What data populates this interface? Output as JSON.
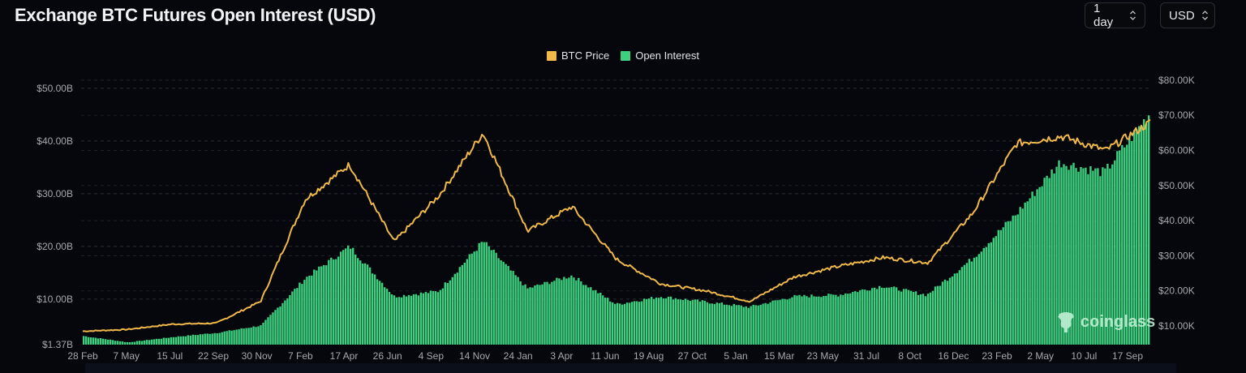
{
  "header": {
    "title": "Exchange BTC Futures Open Interest (USD)",
    "interval_select": {
      "value": "1 day",
      "icon": "chevron-up-down-icon"
    },
    "currency_select": {
      "value": "USD",
      "icon": "chevron-up-down-icon"
    }
  },
  "legend": [
    {
      "label": "BTC Price",
      "color": "#f0b84a"
    },
    {
      "label": "Open Interest",
      "color": "#3ecf7f"
    }
  ],
  "left_axis": [
    "$50.00B",
    "$40.00B",
    "$30.00B",
    "$20.00B",
    "$10.00B",
    "$1.37B"
  ],
  "right_axis": [
    "$80.00K",
    "$70.00K",
    "$60.00K",
    "$50.00K",
    "$40.00K",
    "$30.00K",
    "$20.00K",
    "$10.00K"
  ],
  "x_axis": [
    "28 Feb",
    "7 May",
    "15 Jul",
    "22 Sep",
    "30 Nov",
    "7 Feb",
    "17 Apr",
    "26 Jun",
    "4 Sep",
    "14 Nov",
    "24 Jan",
    "3 Apr",
    "11 Jun",
    "19 Aug",
    "27 Oct",
    "5 Jan",
    "15 Mar",
    "23 May",
    "31 Jul",
    "8 Oct",
    "16 Dec",
    "23 Feb",
    "2 May",
    "10 Jul",
    "17 Sep"
  ],
  "watermark": "coinglass",
  "colors": {
    "background": "#05070c",
    "price": "#f0b84a",
    "oi": "#3ecf7f",
    "grid": "#2a2d33",
    "axis_text": "#a5a8ae"
  },
  "chart_data": {
    "type": "bar+line",
    "title": "Exchange BTC Futures Open Interest (USD)",
    "categories": [
      "28 Feb",
      "7 May",
      "15 Jul",
      "22 Sep",
      "30 Nov",
      "7 Feb",
      "17 Apr",
      "26 Jun",
      "4 Sep",
      "14 Nov",
      "24 Jan",
      "3 Apr",
      "11 Jun",
      "19 Aug",
      "27 Oct",
      "5 Jan",
      "15 Mar",
      "23 May",
      "31 Jul",
      "8 Oct",
      "16 Dec",
      "23 Feb",
      "2 May",
      "10 Jul",
      "17 Sep"
    ],
    "series": [
      {
        "name": "Open Interest",
        "type": "bar",
        "axis": "left",
        "unit": "USD billions",
        "values": [
          3.0,
          1.8,
          2.8,
          3.6,
          5.0,
          14.0,
          20.0,
          10.5,
          11.5,
          21.0,
          12.0,
          14.5,
          9.0,
          10.5,
          9.5,
          8.5,
          10.5,
          10.8,
          12.5,
          10.8,
          17.5,
          26.0,
          36.0,
          34.0,
          45.0
        ]
      },
      {
        "name": "BTC Price",
        "type": "line",
        "axis": "right",
        "unit": "USD thousands",
        "values": [
          8.5,
          9.0,
          10.5,
          10.8,
          17.0,
          46.0,
          56.0,
          34.0,
          47.0,
          65.0,
          37.0,
          44.0,
          29.0,
          22.0,
          20.0,
          17.0,
          24.0,
          27.0,
          29.5,
          28.0,
          42.0,
          62.0,
          64.0,
          60.0,
          68.0
        ]
      }
    ],
    "left_axis": {
      "label": "Open Interest",
      "ticks": [
        "$1.37B",
        "$10.00B",
        "$20.00B",
        "$30.00B",
        "$40.00B",
        "$50.00B"
      ],
      "range": [
        1.37,
        50
      ]
    },
    "right_axis": {
      "label": "BTC Price",
      "ticks": [
        "$10.00K",
        "$20.00K",
        "$30.00K",
        "$40.00K",
        "$50.00K",
        "$60.00K",
        "$70.00K",
        "$80.00K"
      ],
      "range": [
        5,
        80
      ]
    },
    "grid": true,
    "legend_position": "top-center"
  }
}
